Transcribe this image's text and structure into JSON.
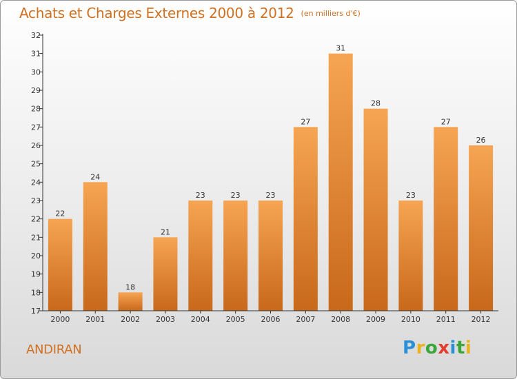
{
  "header": {
    "title": "Achats et Charges Externes 2000 à 2012",
    "unit": "(en milliers d'€)"
  },
  "footer": {
    "commune": "ANDIRAN",
    "brand": "Proxiti",
    "brand_letters": [
      "P",
      "r",
      "o",
      "x",
      "i",
      "t",
      "i"
    ],
    "brand_colors": [
      "#2b8fd6",
      "#e8b31e",
      "#3aa63a",
      "#e33b2c",
      "#2b8fd6",
      "#3aa63a",
      "#e8b31e"
    ]
  },
  "colors": {
    "accent": "#d07020",
    "bar_top": "#f6a552",
    "bar_bottom": "#c8681a",
    "axis": "#333333"
  },
  "chart_data": {
    "type": "bar",
    "categories": [
      "2000",
      "2001",
      "2002",
      "2003",
      "2004",
      "2005",
      "2006",
      "2007",
      "2008",
      "2009",
      "2010",
      "2011",
      "2012"
    ],
    "values": [
      22,
      24,
      18,
      21,
      23,
      23,
      23,
      27,
      31,
      28,
      23,
      27,
      26
    ],
    "ylim": [
      17,
      32
    ],
    "yticks": [
      "17",
      "18",
      "19",
      "20",
      "21",
      "22",
      "23",
      "24",
      "25",
      "26",
      "27",
      "28",
      "29",
      "30",
      "31",
      "32"
    ],
    "grid": false,
    "legend": "none"
  }
}
